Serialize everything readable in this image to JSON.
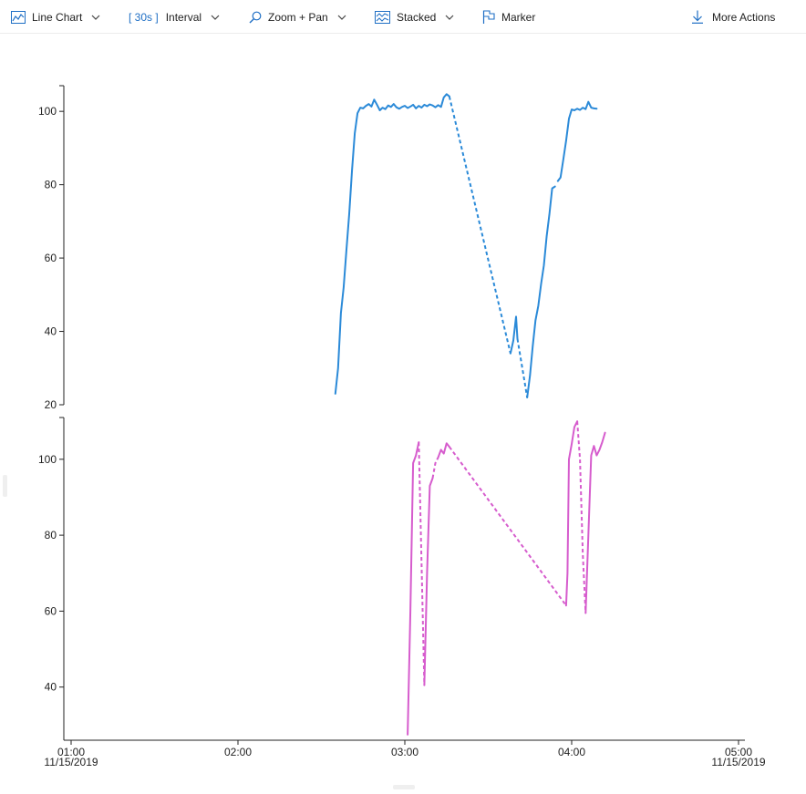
{
  "toolbar": {
    "chart_type": {
      "label": "Line Chart",
      "icon": "line-chart-icon"
    },
    "interval": {
      "value": "[ 30s ]",
      "label": "Interval"
    },
    "zoom": {
      "label": "Zoom + Pan",
      "icon": "magnifier-icon"
    },
    "stacked": {
      "label": "Stacked",
      "icon": "stacked-chart-icon"
    },
    "marker": {
      "label": "Marker",
      "icon": "flag-icon"
    },
    "more_actions": {
      "label": "More Actions",
      "icon": "download-arrow-icon"
    }
  },
  "colors": {
    "accent": "#1f6fc5",
    "series1": "#2b8ad8",
    "series2": "#d65ccd"
  },
  "chart_data": {
    "type": "line",
    "stacked": true,
    "x_ticks": [
      {
        "time": "01:00",
        "date": "11/15/2019"
      },
      {
        "time": "02:00"
      },
      {
        "time": "03:00"
      },
      {
        "time": "04:00"
      },
      {
        "time": "05:00",
        "date": "11/15/2019"
      }
    ],
    "xlim": [
      "01:00",
      "05:00"
    ],
    "panels": [
      {
        "ylim": [
          20,
          107
        ],
        "yticks": [
          20,
          40,
          60,
          80,
          100
        ],
        "color": "#2b8ad8",
        "segments": [
          {
            "style": "solid",
            "points": [
              [
                "02:35",
                23
              ],
              [
                "02:36",
                30
              ],
              [
                "02:37",
                45
              ],
              [
                "02:38",
                52
              ],
              [
                "02:39",
                62
              ],
              [
                "02:40",
                72
              ],
              [
                "02:41",
                84
              ],
              [
                "02:42",
                94
              ],
              [
                "02:43",
                99.5
              ],
              [
                "02:44",
                101
              ],
              [
                "02:45",
                100.8
              ],
              [
                "02:46",
                101.5
              ],
              [
                "02:47",
                102
              ],
              [
                "02:48",
                101.3
              ],
              [
                "02:49",
                103.2
              ],
              [
                "02:50",
                101.8
              ],
              [
                "02:51",
                100.3
              ],
              [
                "02:52",
                101
              ],
              [
                "02:53",
                100.6
              ],
              [
                "02:54",
                101.6
              ],
              [
                "02:55",
                101.2
              ],
              [
                "02:56",
                102
              ],
              [
                "02:57",
                101.1
              ],
              [
                "02:58",
                100.7
              ],
              [
                "02:59",
                101.2
              ],
              [
                "03:00",
                101.5
              ],
              [
                "03:01",
                100.9
              ],
              [
                "03:02",
                101.3
              ],
              [
                "03:03",
                101.8
              ],
              [
                "03:04",
                100.8
              ],
              [
                "03:05",
                101.5
              ],
              [
                "03:06",
                101
              ],
              [
                "03:07",
                101.8
              ],
              [
                "03:08",
                101.4
              ],
              [
                "03:09",
                101.9
              ],
              [
                "03:10",
                101.6
              ],
              [
                "03:11",
                101.1
              ],
              [
                "03:12",
                101.7
              ],
              [
                "03:13",
                101.2
              ],
              [
                "03:14",
                103.8
              ],
              [
                "03:15",
                104.7
              ],
              [
                "03:16",
                104.1
              ]
            ]
          },
          {
            "style": "dashed",
            "points": [
              [
                "03:16",
                104.1
              ],
              [
                "03:38",
                34
              ]
            ]
          },
          {
            "style": "solid",
            "points": [
              [
                "03:38",
                34
              ],
              [
                "03:39",
                37.5
              ],
              [
                "03:40",
                44
              ],
              [
                "03:40.5",
                38
              ]
            ]
          },
          {
            "style": "dashed",
            "points": [
              [
                "03:40.5",
                38
              ],
              [
                "03:44",
                22
              ]
            ]
          },
          {
            "style": "solid",
            "points": [
              [
                "03:44",
                22
              ],
              [
                "03:45",
                28
              ],
              [
                "03:46",
                36
              ],
              [
                "03:47",
                43
              ],
              [
                "03:48",
                47
              ],
              [
                "03:49",
                53
              ],
              [
                "03:50",
                58
              ],
              [
                "03:51",
                66
              ],
              [
                "03:52",
                72
              ],
              [
                "03:53",
                79
              ],
              [
                "03:54",
                79.5
              ]
            ]
          },
          {
            "style": "solid",
            "points": [
              [
                "03:55",
                81
              ],
              [
                "03:56",
                82
              ],
              [
                "03:57",
                87
              ],
              [
                "03:58",
                92
              ],
              [
                "03:59",
                98
              ],
              [
                "04:00",
                100.5
              ],
              [
                "04:01",
                100.3
              ],
              [
                "04:02",
                100.7
              ],
              [
                "04:03",
                100.4
              ],
              [
                "04:04",
                101
              ],
              [
                "04:05",
                100.6
              ],
              [
                "04:06",
                102.6
              ],
              [
                "04:07",
                101
              ],
              [
                "04:08",
                100.8
              ],
              [
                "04:09",
                100.7
              ]
            ]
          }
        ]
      },
      {
        "ylim": [
          26,
          111
        ],
        "yticks": [
          40,
          60,
          80,
          100
        ],
        "color": "#d65ccd",
        "segments": [
          {
            "style": "solid",
            "points": [
              [
                "03:01",
                27.5
              ],
              [
                "03:02",
                60
              ],
              [
                "03:03",
                99
              ],
              [
                "03:04",
                101
              ],
              [
                "03:05",
                104.5
              ]
            ]
          },
          {
            "style": "dashed",
            "points": [
              [
                "03:05",
                104.5
              ],
              [
                "03:07",
                40.5
              ]
            ]
          },
          {
            "style": "solid",
            "points": [
              [
                "03:07",
                40.5
              ],
              [
                "03:08",
                70
              ],
              [
                "03:09",
                93
              ],
              [
                "03:10",
                95
              ]
            ]
          },
          {
            "style": "dashed",
            "points": [
              [
                "03:10",
                95
              ],
              [
                "03:11",
                99
              ],
              [
                "03:12",
                100.5
              ]
            ]
          },
          {
            "style": "solid",
            "points": [
              [
                "03:12",
                100.5
              ],
              [
                "03:13",
                102.5
              ],
              [
                "03:14",
                101.5
              ],
              [
                "03:15",
                104.2
              ],
              [
                "03:16",
                103.3
              ]
            ]
          },
          {
            "style": "dashed",
            "points": [
              [
                "03:16",
                103.3
              ],
              [
                "03:58",
                61.5
              ]
            ]
          },
          {
            "style": "solid",
            "points": [
              [
                "03:58",
                61.5
              ],
              [
                "03:58.5",
                70
              ],
              [
                "03:59",
                100
              ],
              [
                "04:00",
                104
              ],
              [
                "04:01",
                108.5
              ],
              [
                "04:02",
                110
              ]
            ]
          },
          {
            "style": "dashed",
            "points": [
              [
                "04:02",
                110
              ],
              [
                "04:03",
                100
              ],
              [
                "04:04",
                75
              ],
              [
                "04:05",
                59.5
              ]
            ]
          },
          {
            "style": "solid",
            "points": [
              [
                "04:05",
                59.5
              ],
              [
                "04:06",
                80
              ],
              [
                "04:07",
                101
              ],
              [
                "04:08",
                103.5
              ],
              [
                "04:09",
                101
              ],
              [
                "04:10",
                102.5
              ],
              [
                "04:11",
                104.5
              ],
              [
                "04:12",
                107
              ]
            ]
          }
        ]
      }
    ]
  }
}
